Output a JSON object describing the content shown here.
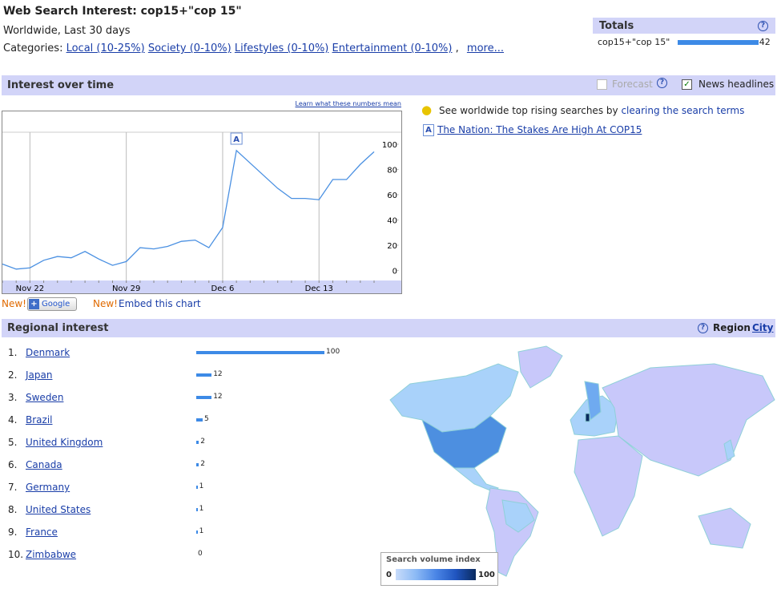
{
  "header": {
    "title": "Web Search Interest: cop15+\"cop 15\"",
    "subtitle": "Worldwide, Last 30 days",
    "categories_label": "Categories:",
    "categories": [
      "Local (10-25%)",
      "Society (0-10%)",
      "Lifestyles (0-10%)",
      "Entertainment (0-10%)"
    ],
    "separator": ",",
    "more": "more..."
  },
  "totals": {
    "title": "Totals",
    "help": "?",
    "rows": [
      {
        "label": "cop15+\"cop 15\"",
        "value": 42
      }
    ]
  },
  "interest": {
    "title": "Interest over time",
    "forecast": "Forecast",
    "help": "?",
    "news": "News headlines",
    "learn_link": "Learn what these numbers mean",
    "rising_text": "See worldwide top rising searches by",
    "rising_link": "clearing the search terms",
    "headline_marker": "A",
    "headline": "The Nation: The Stakes Are High At COP15",
    "new_label": "New!",
    "google_button": "Google",
    "embed": "Embed this chart"
  },
  "chart_data": {
    "type": "line",
    "categories": [
      null,
      null,
      "Nov 22",
      null,
      null,
      null,
      null,
      null,
      null,
      "Nov 29",
      null,
      null,
      null,
      null,
      null,
      null,
      "Dec 6",
      null,
      null,
      null,
      null,
      null,
      null,
      "Dec 13",
      null,
      null,
      null,
      null
    ],
    "series": [
      {
        "name": "cop15+\"cop 15\"",
        "color": "#4a90e2",
        "values": [
          5,
          1,
          2,
          8,
          11,
          10,
          15,
          9,
          4,
          7,
          18,
          17,
          19,
          23,
          24,
          18,
          34,
          95,
          85,
          75,
          65,
          57,
          57,
          56,
          72,
          72,
          84,
          94
        ]
      }
    ],
    "ylim": [
      -8,
      126
    ],
    "yticks": [
      0,
      20,
      40,
      60,
      80,
      100
    ],
    "annotations": [
      {
        "index": 17,
        "label": "A"
      }
    ]
  },
  "regional": {
    "title": "Regional interest",
    "help": "?",
    "region": "Region",
    "city": "City",
    "rows": [
      {
        "rank": "1.",
        "name": "Denmark",
        "value": 100
      },
      {
        "rank": "2.",
        "name": "Japan",
        "value": 12
      },
      {
        "rank": "3.",
        "name": "Sweden",
        "value": 12
      },
      {
        "rank": "4.",
        "name": "Brazil",
        "value": 5
      },
      {
        "rank": "5.",
        "name": "United Kingdom",
        "value": 2
      },
      {
        "rank": "6.",
        "name": "Canada",
        "value": 2
      },
      {
        "rank": "7.",
        "name": "Germany",
        "value": 1
      },
      {
        "rank": "8.",
        "name": "United States",
        "value": 1
      },
      {
        "rank": "9.",
        "name": "France",
        "value": 1
      },
      {
        "rank": "10.",
        "name": "Zimbabwe",
        "value": 0
      }
    ],
    "legend_title": "Search volume index",
    "legend_min": "0",
    "legend_max": "100"
  }
}
